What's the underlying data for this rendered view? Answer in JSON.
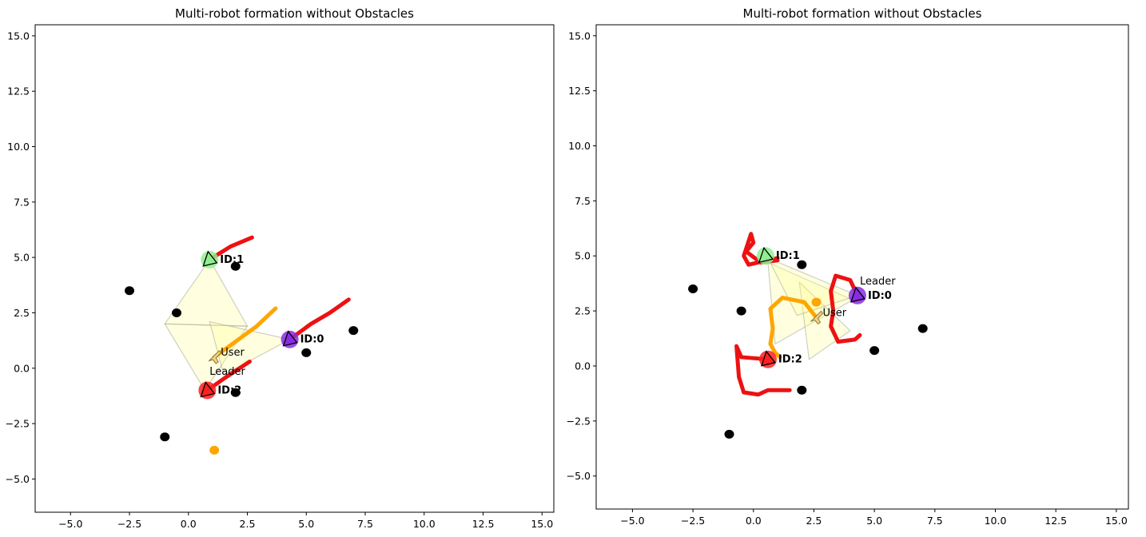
{
  "chart_data": [
    {
      "type": "scatter",
      "title": "Multi-robot formation without Obstacles",
      "xlim": [
        -6.5,
        15.5
      ],
      "ylim": [
        -6.5,
        15.5
      ],
      "xticks": [
        "−5.0",
        "−2.5",
        "0.0",
        "2.5",
        "5.0",
        "7.5",
        "10.0",
        "12.5",
        "15.0"
      ],
      "yticks": [
        "−5.0",
        "−2.5",
        "0.0",
        "2.5",
        "5.0",
        "7.5",
        "10.0",
        "12.5",
        "15.0"
      ],
      "grid": false,
      "obstacles": [
        [
          -2.5,
          3.5
        ],
        [
          -0.5,
          2.5
        ],
        [
          2.0,
          4.6
        ],
        [
          7.0,
          1.7
        ],
        [
          5.0,
          0.7
        ],
        [
          2.0,
          -1.1
        ],
        [
          -1.0,
          -3.1
        ]
      ],
      "goal": [
        1.1,
        -3.7
      ],
      "robots": [
        {
          "id": "ID:0",
          "x": 4.3,
          "y": 1.3,
          "color": "#8a2be2",
          "trail": [
            [
              4.3,
              1.3
            ],
            [
              5.2,
              2.0
            ],
            [
              6.0,
              2.5
            ],
            [
              6.8,
              3.1
            ]
          ]
        },
        {
          "id": "ID:1",
          "x": 0.9,
          "y": 4.9,
          "color": "#90ee90",
          "trail": [
            [
              0.9,
              4.9
            ],
            [
              1.8,
              5.5
            ],
            [
              2.7,
              5.9
            ]
          ]
        },
        {
          "id": "ID:2",
          "x": 0.8,
          "y": -1.0,
          "color": "#ff2020",
          "trail": [
            [
              0.8,
              -1.0
            ],
            [
              1.6,
              -0.4
            ],
            [
              2.6,
              0.3
            ]
          ]
        }
      ],
      "user": {
        "label": "User",
        "x": 1.1,
        "y": 0.5,
        "trail": [
          [
            1.1,
            0.5
          ],
          [
            2.0,
            1.2
          ],
          [
            2.9,
            1.9
          ],
          [
            3.7,
            2.7
          ]
        ]
      },
      "leader": {
        "label": "Leader",
        "x": 0.9,
        "y": -0.3
      },
      "formation_areas": [
        [
          [
            -1.0,
            2.0
          ],
          [
            2.5,
            1.9
          ],
          [
            0.7,
            -1.0
          ]
        ],
        [
          [
            0.9,
            4.9
          ],
          [
            2.5,
            1.9
          ],
          [
            -1.0,
            2.0
          ]
        ],
        [
          [
            0.9,
            2.1
          ],
          [
            4.3,
            1.3
          ],
          [
            1.5,
            -0.3
          ]
        ]
      ]
    },
    {
      "type": "scatter",
      "title": "Multi-robot formation without Obstacles",
      "xlim": [
        -6.5,
        15.5
      ],
      "ylim": [
        -6.5,
        15.5
      ],
      "xticks": [
        "−5.0",
        "−2.5",
        "0.0",
        "2.5",
        "5.0",
        "7.5",
        "10.0",
        "12.5",
        "15.0"
      ],
      "yticks": [
        "−5.0",
        "−2.5",
        "0.0",
        "2.5",
        "5.0",
        "7.5",
        "10.0",
        "12.5",
        "15.0"
      ],
      "grid": false,
      "obstacles": [
        [
          -2.5,
          3.5
        ],
        [
          -0.5,
          2.5
        ],
        [
          2.0,
          4.6
        ],
        [
          7.0,
          1.7
        ],
        [
          5.0,
          0.7
        ],
        [
          2.0,
          -1.1
        ],
        [
          -1.0,
          -3.1
        ]
      ],
      "goal": [
        2.6,
        2.9
      ],
      "robots": [
        {
          "id": "ID:0",
          "x": 4.3,
          "y": 3.2,
          "color": "#8a2be2",
          "trail": [
            [
              4.3,
              3.2
            ],
            [
              4.0,
              3.9
            ],
            [
              3.4,
              4.1
            ],
            [
              3.2,
              3.4
            ],
            [
              3.3,
              2.5
            ],
            [
              3.2,
              1.8
            ],
            [
              3.5,
              1.1
            ],
            [
              4.2,
              1.2
            ],
            [
              4.4,
              1.4
            ]
          ]
        },
        {
          "id": "ID:1",
          "x": 0.5,
          "y": 5.0,
          "color": "#90ee90",
          "trail": [
            [
              1.0,
              4.8
            ],
            [
              0.3,
              4.7
            ],
            [
              -0.3,
              5.2
            ],
            [
              0.0,
              5.6
            ],
            [
              -0.1,
              6.0
            ],
            [
              -0.4,
              5.0
            ],
            [
              -0.2,
              4.6
            ],
            [
              0.6,
              4.8
            ],
            [
              1.0,
              4.9
            ]
          ]
        },
        {
          "id": "ID:2",
          "x": 0.6,
          "y": 0.3,
          "color": "#ff2020",
          "trail": [
            [
              0.6,
              0.3
            ],
            [
              -0.5,
              0.4
            ],
            [
              -0.7,
              0.9
            ],
            [
              -0.6,
              -0.5
            ],
            [
              -0.4,
              -1.2
            ],
            [
              0.2,
              -1.3
            ],
            [
              0.6,
              -1.1
            ],
            [
              1.5,
              -1.1
            ]
          ]
        }
      ],
      "user": {
        "label": "User",
        "x": 2.6,
        "y": 2.2,
        "trail": [
          [
            2.6,
            2.2
          ],
          [
            2.1,
            2.9
          ],
          [
            1.2,
            3.1
          ],
          [
            0.7,
            2.6
          ],
          [
            0.8,
            1.7
          ],
          [
            0.7,
            1.0
          ],
          [
            0.9,
            0.6
          ],
          [
            1.1,
            0.4
          ]
        ]
      },
      "leader": {
        "label": "Leader",
        "x": 4.4,
        "y": 3.7
      },
      "formation_areas": [
        [
          [
            0.6,
            4.7
          ],
          [
            4.1,
            3.0
          ],
          [
            0.9,
            1.0
          ]
        ],
        [
          [
            1.9,
            3.8
          ],
          [
            4.0,
            1.6
          ],
          [
            2.3,
            0.3
          ]
        ],
        [
          [
            0.6,
            4.9
          ],
          [
            4.3,
            3.2
          ],
          [
            1.8,
            2.3
          ]
        ]
      ]
    }
  ]
}
